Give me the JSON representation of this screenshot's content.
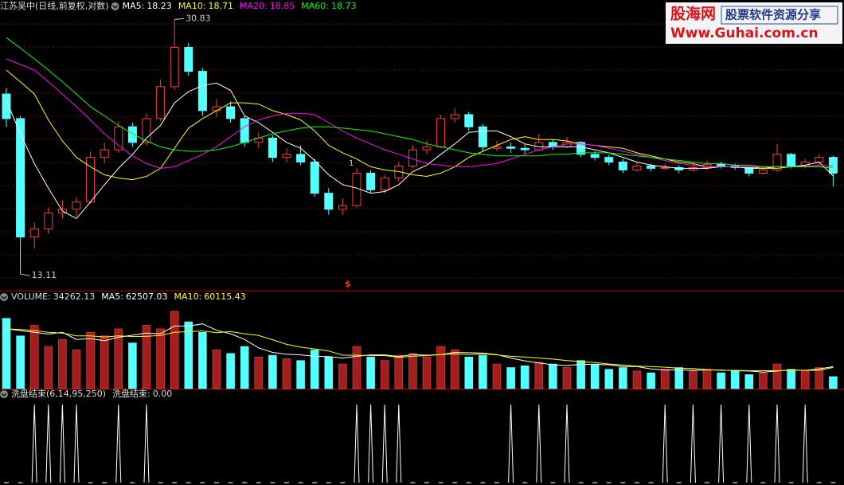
{
  "chart_data": [
    {
      "type": "candlestick",
      "title": "江苏吴中(日线,前复权,对数)",
      "log_scale": true,
      "grid": true,
      "ylim": [
        12.5,
        31.7
      ],
      "up_color": "#ff3c3c",
      "down_color": "#54ffff",
      "ohlc": [
        [
          24.0,
          24.5,
          21.5,
          22.1
        ],
        [
          22.1,
          22.3,
          13.11,
          14.85
        ],
        [
          14.85,
          15.6,
          14.3,
          15.25
        ],
        [
          15.25,
          16.4,
          15.0,
          16.1
        ],
        [
          16.1,
          16.8,
          15.8,
          16.3
        ],
        [
          16.3,
          17.0,
          15.9,
          16.7
        ],
        [
          16.7,
          19.8,
          16.6,
          19.4
        ],
        [
          19.4,
          20.4,
          19.0,
          19.9
        ],
        [
          19.9,
          21.9,
          19.7,
          21.5
        ],
        [
          21.5,
          21.8,
          20.1,
          20.4
        ],
        [
          20.4,
          22.5,
          20.2,
          22.1
        ],
        [
          22.1,
          25.2,
          21.9,
          24.6
        ],
        [
          24.6,
          30.83,
          24.3,
          28.07
        ],
        [
          28.07,
          28.5,
          25.5,
          25.9
        ],
        [
          25.9,
          26.2,
          22.3,
          22.7
        ],
        [
          22.7,
          23.6,
          22.2,
          23.0
        ],
        [
          23.0,
          23.4,
          21.8,
          22.1
        ],
        [
          22.1,
          22.3,
          20.1,
          20.4
        ],
        [
          20.4,
          21.1,
          20.0,
          20.7
        ],
        [
          20.7,
          20.9,
          19.1,
          19.4
        ],
        [
          19.4,
          20.0,
          19.1,
          19.6
        ],
        [
          19.6,
          20.2,
          18.9,
          19.1
        ],
        [
          19.1,
          19.3,
          17.0,
          17.2
        ],
        [
          17.2,
          17.5,
          16.0,
          16.3
        ],
        [
          16.3,
          16.9,
          16.0,
          16.5
        ],
        [
          16.5,
          18.7,
          16.4,
          18.4
        ],
        [
          18.4,
          18.6,
          17.2,
          17.4
        ],
        [
          17.4,
          18.3,
          17.2,
          18.1
        ],
        [
          18.1,
          19.1,
          17.9,
          18.85
        ],
        [
          18.85,
          20.2,
          18.7,
          19.9
        ],
        [
          19.9,
          20.5,
          19.6,
          20.1
        ],
        [
          20.1,
          22.4,
          20.0,
          22.1
        ],
        [
          22.1,
          22.9,
          21.8,
          22.4
        ],
        [
          22.4,
          22.6,
          21.2,
          21.5
        ],
        [
          21.5,
          21.7,
          19.8,
          20.1
        ],
        [
          20.0,
          20.5,
          19.8,
          20.1
        ],
        [
          20.1,
          20.4,
          19.7,
          20.0
        ],
        [
          20.0,
          20.3,
          19.6,
          19.9
        ],
        [
          19.9,
          21.0,
          19.8,
          20.4
        ],
        [
          20.4,
          20.6,
          19.9,
          20.1
        ],
        [
          20.1,
          20.8,
          20.0,
          20.4
        ],
        [
          20.4,
          20.5,
          19.4,
          19.6
        ],
        [
          19.6,
          19.8,
          19.2,
          19.4
        ],
        [
          19.4,
          19.6,
          18.9,
          19.1
        ],
        [
          19.1,
          19.3,
          18.4,
          18.6
        ],
        [
          18.6,
          19.1,
          18.5,
          18.85
        ],
        [
          18.85,
          19.0,
          18.5,
          18.7
        ],
        [
          18.7,
          19.0,
          18.6,
          18.75
        ],
        [
          18.75,
          18.9,
          18.4,
          18.6
        ],
        [
          18.6,
          19.0,
          18.5,
          18.75
        ],
        [
          18.75,
          19.2,
          18.6,
          18.95
        ],
        [
          18.95,
          19.1,
          18.7,
          18.85
        ],
        [
          18.85,
          19.0,
          18.6,
          18.75
        ],
        [
          18.75,
          18.8,
          18.2,
          18.4
        ],
        [
          18.4,
          18.8,
          18.3,
          18.6
        ],
        [
          18.6,
          20.3,
          18.5,
          19.6
        ],
        [
          19.6,
          19.7,
          18.7,
          18.85
        ],
        [
          18.85,
          19.3,
          18.7,
          19.1
        ],
        [
          19.1,
          19.6,
          18.9,
          19.4
        ],
        [
          19.4,
          19.5,
          17.6,
          18.4
        ]
      ],
      "series": [
        {
          "name": "MA5:",
          "color": "#ffffff",
          "values": [
            23.5,
            21,
            19,
            17.5,
            16.2,
            15.8,
            16.7,
            17.7,
            18.7,
            19.6,
            20.7,
            21.6,
            23.3,
            24.2,
            24.7,
            24.9,
            24.3,
            22.3,
            21.8,
            21.1,
            20.4,
            20.0,
            19.2,
            18.3,
            17.7,
            17.5,
            17.2,
            17.3,
            17.7,
            18.5,
            18.9,
            19.6,
            20.3,
            21.1,
            21.2,
            21.2,
            20.8,
            20.3,
            20.1,
            20.1,
            20.1,
            20.1,
            19.9,
            19.7,
            19.4,
            19.1,
            18.9,
            18.8,
            18.7,
            18.7,
            18.7,
            18.8,
            18.8,
            18.7,
            18.7,
            18.8,
            18.8,
            18.9,
            19.1,
            18.23
          ]
        },
        {
          "name": "MA10:",
          "color": "#ffff00",
          "values": [
            26,
            25,
            24,
            22,
            20.5,
            19.4,
            18.8,
            18.3,
            18.1,
            18.0,
            18.2,
            18.7,
            20.0,
            21.4,
            22.1,
            22.7,
            23.3,
            23.3,
            23.2,
            22.7,
            22.4,
            22.0,
            21.2,
            20.2,
            19.7,
            19.3,
            18.8,
            18.6,
            18.5,
            18.3,
            18.2,
            18.4,
            18.8,
            19.4,
            19.8,
            20.2,
            20.6,
            20.8,
            20.6,
            20.6,
            20.5,
            20.3,
            20.2,
            20.1,
            20.0,
            19.7,
            19.5,
            19.3,
            19.1,
            19.0,
            18.8,
            18.8,
            18.8,
            18.8,
            18.7,
            18.7,
            18.8,
            18.8,
            18.8,
            18.71
          ]
        },
        {
          "name": "MA20:",
          "color": "#ff00ff",
          "values": [
            27,
            26.5,
            26,
            25,
            24,
            23,
            22,
            21,
            20.2,
            19.5,
            19.0,
            18.7,
            18.8,
            19.2,
            19.6,
            20.1,
            20.8,
            21.5,
            22.0,
            22.3,
            22.5,
            22.5,
            22.4,
            21.8,
            21.2,
            20.7,
            20.3,
            19.9,
            19.6,
            19.3,
            19.0,
            18.9,
            18.8,
            18.8,
            18.9,
            19.0,
            19.3,
            19.6,
            19.9,
            20.1,
            20.3,
            20.3,
            20.2,
            20.0,
            19.8,
            19.6,
            19.4,
            19.2,
            19.0,
            18.9,
            18.8,
            18.8,
            18.8,
            18.8,
            18.8,
            18.8,
            18.8,
            18.8,
            18.9,
            18.85
          ]
        },
        {
          "name": "MA60:",
          "color": "#00ff00",
          "values": [
            29,
            28,
            27,
            26,
            25,
            24,
            23,
            22.3,
            21.6,
            21.0,
            20.5,
            20.1,
            19.9,
            19.8,
            19.8,
            19.9,
            20.1,
            20.4,
            20.7,
            21.0,
            21.2,
            21.4,
            21.5,
            21.5,
            21.4,
            21.3,
            21.2,
            21.0,
            20.8,
            20.6,
            20.3,
            20.1,
            19.9,
            19.7,
            19.6,
            19.5,
            19.5,
            19.5,
            19.5,
            19.6,
            19.6,
            19.7,
            19.7,
            19.7,
            19.6,
            19.5,
            19.4,
            19.3,
            19.2,
            19.1,
            19.0,
            19.0,
            18.9,
            18.9,
            18.8,
            18.8,
            18.8,
            18.8,
            18.8,
            18.73
          ]
        }
      ],
      "annotations": [
        "1",
        "$"
      ]
    },
    {
      "type": "volume",
      "name": "VOLUME:",
      "ylim": [
        0,
        240000
      ],
      "values": [
        200000,
        150000,
        180000,
        120000,
        140000,
        110000,
        160000,
        150000,
        170000,
        130000,
        180000,
        170000,
        220000,
        190000,
        160000,
        110000,
        100000,
        120000,
        90000,
        95000,
        85000,
        80000,
        110000,
        90000,
        70000,
        120000,
        90000,
        80000,
        95000,
        100000,
        90000,
        120000,
        110000,
        90000,
        95000,
        70000,
        60000,
        65000,
        75000,
        70000,
        60000,
        80000,
        70000,
        55000,
        60000,
        50000,
        45000,
        55000,
        60000,
        50000,
        55000,
        45000,
        50000,
        40000,
        45000,
        70000,
        55000,
        50000,
        60000,
        34262.13
      ],
      "series": [
        {
          "name": "MA5:",
          "color": "#ffffff",
          "values": [
            170000,
            165000,
            160000,
            155000,
            160000,
            140000,
            142000,
            136000,
            146000,
            152000,
            158000,
            156000,
            178000,
            178000,
            184000,
            166000,
            156000,
            140000,
            116000,
            103000,
            98000,
            96000,
            92000,
            91000,
            87000,
            92000,
            96000,
            96000,
            91000,
            97000,
            95000,
            97000,
            103000,
            102000,
            101000,
            97000,
            87000,
            79000,
            73000,
            68000,
            66000,
            69000,
            69000,
            68000,
            63000,
            63000,
            56000,
            53000,
            53000,
            52000,
            53000,
            53000,
            51000,
            50000,
            47000,
            50000,
            53000,
            52000,
            56000,
            62507.03
          ]
        },
        {
          "name": "MA10:",
          "color": "#ffff00",
          "values": [
            170000,
            168000,
            165000,
            160000,
            158000,
            150000,
            150000,
            147000,
            150000,
            148000,
            149000,
            151000,
            160000,
            162000,
            164000,
            159000,
            162000,
            156000,
            151000,
            139000,
            126000,
            118000,
            113000,
            107000,
            95000,
            95000,
            94000,
            94000,
            89000,
            92000,
            94000,
            97000,
            99000,
            97000,
            99000,
            96000,
            92000,
            90000,
            87000,
            84000,
            80000,
            77000,
            74000,
            70000,
            67000,
            64000,
            63000,
            61000,
            58000,
            57000,
            54000,
            52000,
            52000,
            51000,
            51000,
            51000,
            52000,
            52000,
            52000,
            60115.43
          ]
        }
      ]
    },
    {
      "type": "signal",
      "name": "洗盘结束(6,14,95,250)",
      "label": "洗盘结束:",
      "value_label": "0.00",
      "color": "#ffffff",
      "ylim": [
        0,
        1
      ],
      "values": [
        0,
        0,
        1,
        1,
        1,
        1,
        0,
        0,
        1,
        0,
        1,
        0,
        0,
        0,
        0,
        0,
        0,
        0,
        0,
        0,
        0,
        0,
        0,
        0,
        0,
        1,
        1,
        1,
        1,
        0,
        0,
        0,
        0,
        0,
        0,
        0,
        1,
        0,
        1,
        0,
        1,
        0,
        0,
        0,
        0,
        0,
        0,
        1,
        0,
        1,
        0,
        1,
        0,
        1,
        0,
        1,
        0,
        1,
        0,
        0
      ]
    }
  ],
  "watermark": {
    "brand": "股海网",
    "slogan": "股票软件资源分享",
    "url": "Www.Guhai.com.cn"
  }
}
